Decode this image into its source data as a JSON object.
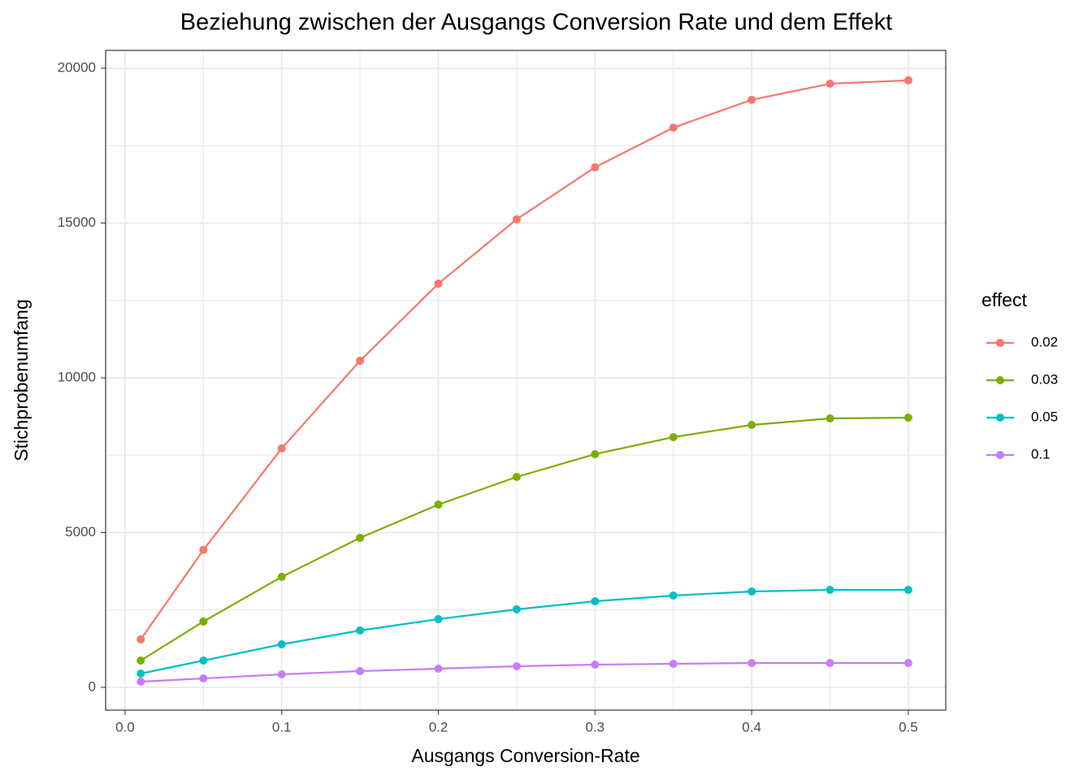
{
  "chart_data": {
    "type": "line",
    "title": "Beziehung zwischen der Ausgangs Conversion Rate und dem Effekt",
    "x_label": "Ausgangs Conversion-Rate",
    "y_label": "Stichprobenumfang",
    "legend_title": "effect",
    "legend_position": "right",
    "grid": true,
    "x": [
      0.01,
      0.05,
      0.1,
      0.15,
      0.2,
      0.25,
      0.3,
      0.35,
      0.4,
      0.45,
      0.5
    ],
    "series": [
      {
        "name": "0.02",
        "color": "#F8766D",
        "values": [
          1550,
          4440,
          7720,
          10550,
          13040,
          15120,
          16800,
          18080,
          18980,
          19500,
          19610
        ]
      },
      {
        "name": "0.03",
        "color": "#7CAE00",
        "values": [
          866,
          2126,
          3570,
          4829,
          5906,
          6798,
          7533,
          8084,
          8478,
          8688,
          8714
        ]
      },
      {
        "name": "0.05",
        "color": "#00BFC4",
        "values": [
          446,
          866,
          1391,
          1837,
          2205,
          2520,
          2782,
          2966,
          3097,
          3150,
          3150
        ]
      },
      {
        "name": "0.1",
        "color": "#C77CFF",
        "values": [
          184,
          289,
          420,
          525,
          604,
          682,
          735,
          761,
          787,
          787,
          787
        ]
      }
    ],
    "xlim": [
      -0.0124,
      0.5239
    ],
    "ylim": [
      -735,
      20577
    ],
    "xticks": [
      {
        "value": 0,
        "label": "0.0"
      },
      0.1,
      0.2,
      0.3,
      0.4,
      0.5
    ],
    "yticks": [
      0,
      5000,
      10000,
      15000,
      20000
    ]
  }
}
